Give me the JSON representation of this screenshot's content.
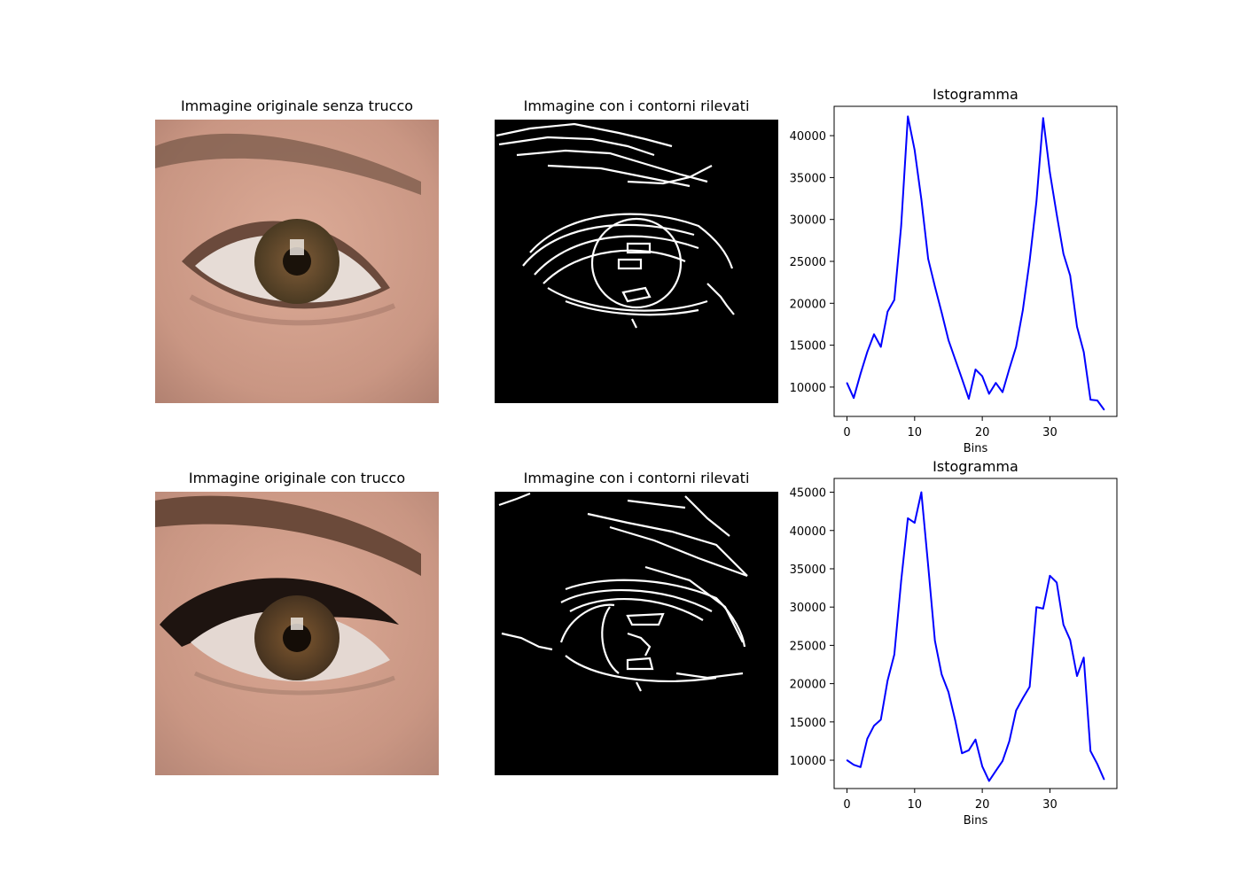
{
  "rows": [
    {
      "photo_title": "Immagine originale senza trucco",
      "edges_title": "Immagine con i contorni rilevati"
    },
    {
      "photo_title": "Immagine originale con trucco",
      "edges_title": "Immagine con i contorni rilevati"
    }
  ],
  "colors": {
    "line": "#0000ff",
    "edges_background": "#000000",
    "edges_stroke": "#ffffff",
    "skin": "#d7a48f",
    "iris": "#7a5a35"
  },
  "chart_data": [
    {
      "type": "line",
      "title": "Istogramma",
      "xlabel": "Bins",
      "ylabel": "",
      "xlim": [
        -1.9,
        39.9
      ],
      "ylim": [
        6500,
        43500
      ],
      "xticks": [
        0,
        10,
        20,
        30
      ],
      "yticks": [
        10000,
        15000,
        20000,
        25000,
        30000,
        35000,
        40000
      ],
      "grid": false,
      "series": [
        {
          "x": [
            0,
            1,
            2,
            3,
            4,
            5,
            6,
            7,
            8,
            9,
            10,
            11,
            12,
            13,
            14,
            15,
            16,
            17,
            18,
            19,
            20,
            21,
            22,
            23,
            24,
            25,
            26,
            27,
            28,
            29,
            30,
            31,
            32,
            33,
            34,
            35,
            36,
            37,
            38
          ],
          "values": [
            10500,
            8700,
            11600,
            14200,
            16300,
            14800,
            19000,
            20400,
            29200,
            42300,
            38300,
            32400,
            25300,
            22000,
            18900,
            15600,
            13300,
            11000,
            8600,
            12100,
            11300,
            9200,
            10500,
            9400,
            12200,
            14800,
            19200,
            25100,
            32100,
            42100,
            35600,
            30600,
            25900,
            23300,
            17200,
            14200,
            8500,
            8400,
            7300
          ]
        }
      ]
    },
    {
      "type": "line",
      "title": "Istogramma",
      "xlabel": "Bins",
      "ylabel": "",
      "xlim": [
        -1.9,
        39.9
      ],
      "ylim": [
        6300,
        46800
      ],
      "xticks": [
        0,
        10,
        20,
        30
      ],
      "yticks": [
        10000,
        15000,
        20000,
        25000,
        30000,
        35000,
        40000,
        45000
      ],
      "grid": false,
      "series": [
        {
          "x": [
            0,
            1,
            2,
            3,
            4,
            5,
            6,
            7,
            8,
            9,
            10,
            11,
            12,
            13,
            14,
            15,
            16,
            17,
            18,
            19,
            20,
            21,
            22,
            23,
            24,
            25,
            26,
            27,
            28,
            29,
            30,
            31,
            32,
            33,
            34,
            35,
            36,
            37,
            38
          ],
          "values": [
            10000,
            9400,
            9100,
            12800,
            14500,
            15300,
            20400,
            23800,
            33400,
            41600,
            41000,
            45000,
            35400,
            25600,
            21200,
            18900,
            15200,
            10900,
            11300,
            12700,
            9200,
            7300,
            8600,
            9900,
            12500,
            16500,
            18100,
            19600,
            30000,
            29800,
            34100,
            33200,
            27700,
            25700,
            21000,
            23400,
            11200,
            9500,
            7500
          ]
        }
      ]
    }
  ]
}
